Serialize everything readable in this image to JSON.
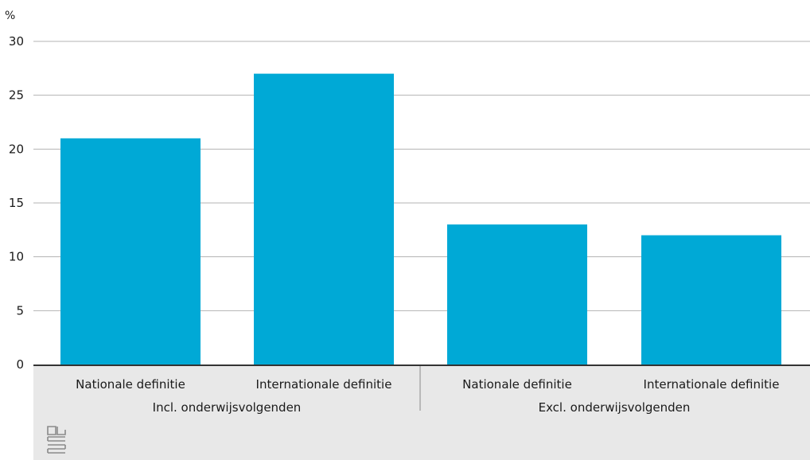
{
  "chart_data": {
    "type": "bar",
    "unit_label": "%",
    "ylim": [
      0,
      30
    ],
    "yticks": [
      0,
      5,
      10,
      15,
      20,
      25,
      30
    ],
    "grid": true,
    "categories": [
      "Nationale definitie",
      "Internationale definitie",
      "Nationale definitie",
      "Internationale definitie"
    ],
    "groups": [
      {
        "label": "Incl. onderwijsvolgenden",
        "categories": [
          "Nationale definitie",
          "Internationale definitie"
        ]
      },
      {
        "label": "Excl. onderwijsvolgenden",
        "categories": [
          "Nationale definitie",
          "Internationale definitie"
        ]
      }
    ],
    "values": [
      21,
      27,
      13,
      12
    ],
    "bar_color": "#00a9d6",
    "xlabel": "",
    "ylabel": "%"
  },
  "colors": {
    "bar": "#00a9d6",
    "grid": "#b3b3b3",
    "axis": "#333333",
    "footer": "#e8e8e8"
  },
  "logo_icon": "cbs-logo-icon"
}
